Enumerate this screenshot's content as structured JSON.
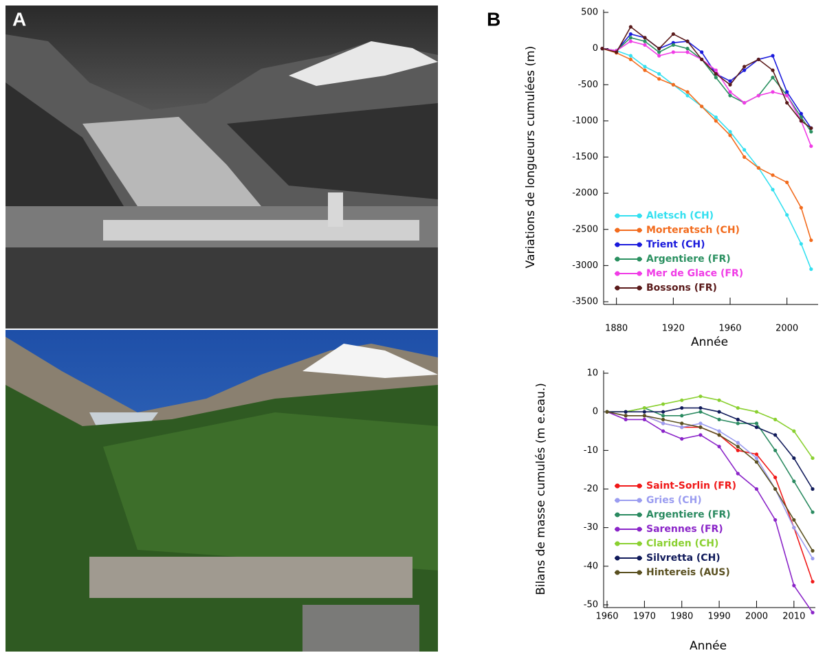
{
  "panel_labels": [
    "A",
    "B"
  ],
  "chart_data": [
    {
      "type": "line",
      "ylabel": "Variations de longueurs cumulées (m)",
      "xlabel": "Année",
      "x": [
        1870,
        1880,
        1890,
        1900,
        1910,
        1920,
        1930,
        1940,
        1950,
        1960,
        1970,
        1980,
        1990,
        2000,
        2010,
        2017
      ],
      "xlim": [
        1870,
        2020
      ],
      "xticks": [
        1880,
        1920,
        1960,
        2000
      ],
      "ylim": [
        -3500,
        500
      ],
      "yticks": [
        -3500,
        -3000,
        -2500,
        -2000,
        -1500,
        -1000,
        -500,
        0,
        500
      ],
      "legend": "lower left",
      "series": [
        {
          "name": "Aletsch (CH)",
          "color": "#33e0f0",
          "values": [
            0,
            -30,
            -100,
            -250,
            -350,
            -500,
            -650,
            -800,
            -950,
            -1150,
            -1400,
            -1650,
            -1950,
            -2300,
            -2700,
            -3050
          ]
        },
        {
          "name": "Morteratsch (CH)",
          "color": "#f26b1d",
          "values": [
            0,
            -60,
            -150,
            -300,
            -420,
            -500,
            -600,
            -800,
            -1000,
            -1200,
            -1500,
            -1650,
            -1750,
            -1850,
            -2200,
            -2650
          ]
        },
        {
          "name": "Trient (CH)",
          "color": "#1a1adc",
          "values": [
            0,
            -30,
            200,
            150,
            0,
            80,
            100,
            -50,
            -350,
            -450,
            -300,
            -150,
            -100,
            -600,
            -900,
            -1100
          ]
        },
        {
          "name": "Argentiere (FR)",
          "color": "#2a9060",
          "values": [
            0,
            -30,
            150,
            100,
            -50,
            50,
            0,
            -150,
            -400,
            -650,
            -750,
            -650,
            -400,
            -650,
            -950,
            -1150
          ]
        },
        {
          "name": "Mer de Glace (FR)",
          "color": "#f03ce6",
          "values": [
            0,
            -30,
            100,
            50,
            -100,
            -50,
            -50,
            -150,
            -300,
            -600,
            -750,
            -650,
            -600,
            -650,
            -1000,
            -1350
          ]
        },
        {
          "name": "Bossons (FR)",
          "color": "#5a1a1a",
          "values": [
            0,
            -50,
            300,
            150,
            0,
            200,
            100,
            -150,
            -350,
            -500,
            -250,
            -150,
            -300,
            -750,
            -1000,
            -1100
          ]
        }
      ]
    },
    {
      "type": "line",
      "ylabel": "Bilans de masse cumulés (m e.eau.)",
      "xlabel": "Année",
      "x": [
        1960,
        1965,
        1970,
        1975,
        1980,
        1985,
        1990,
        1995,
        2000,
        2005,
        2010,
        2015
      ],
      "xlim": [
        1960,
        2015
      ],
      "xticks": [
        1960,
        1970,
        1980,
        1990,
        2000,
        2010
      ],
      "ylim": [
        -50,
        10
      ],
      "yticks": [
        -50,
        -40,
        -30,
        -20,
        -10,
        0,
        10
      ],
      "legend": "lower left",
      "series": [
        {
          "name": "Saint-Sorlin (FR)",
          "color": "#f01818",
          "values": [
            0,
            -1,
            -1,
            -3,
            -4,
            -4,
            -6,
            -10,
            -11,
            -17,
            -30,
            -44
          ]
        },
        {
          "name": "Gries (CH)",
          "color": "#9a9cf0",
          "values": [
            0,
            -1,
            -1,
            -3,
            -4,
            -3,
            -5,
            -8,
            -12,
            -20,
            -30,
            -38
          ]
        },
        {
          "name": "Argentiere (FR)",
          "color": "#2a8a60",
          "values": [
            0,
            0,
            1,
            -1,
            -1,
            0,
            -2,
            -3,
            -3,
            -10,
            -18,
            -26
          ]
        },
        {
          "name": "Sarennes (FR)",
          "color": "#8a24c8",
          "values": [
            0,
            -2,
            -2,
            -5,
            -7,
            -6,
            -9,
            -16,
            -20,
            -28,
            -45,
            -52
          ]
        },
        {
          "name": "Clariden (CH)",
          "color": "#8ad030",
          "values": [
            0,
            0,
            1,
            2,
            3,
            4,
            3,
            1,
            0,
            -2,
            -5,
            -12
          ]
        },
        {
          "name": "Silvretta (CH)",
          "color": "#101a5a",
          "values": [
            0,
            0,
            0,
            0,
            1,
            1,
            0,
            -2,
            -4,
            -6,
            -12,
            -20
          ]
        },
        {
          "name": "Hintereis (AUS)",
          "color": "#5a5020",
          "values": [
            0,
            -1,
            -1,
            -2,
            -3,
            -4,
            -6,
            -9,
            -13,
            -20,
            -28,
            -36
          ]
        }
      ]
    }
  ]
}
